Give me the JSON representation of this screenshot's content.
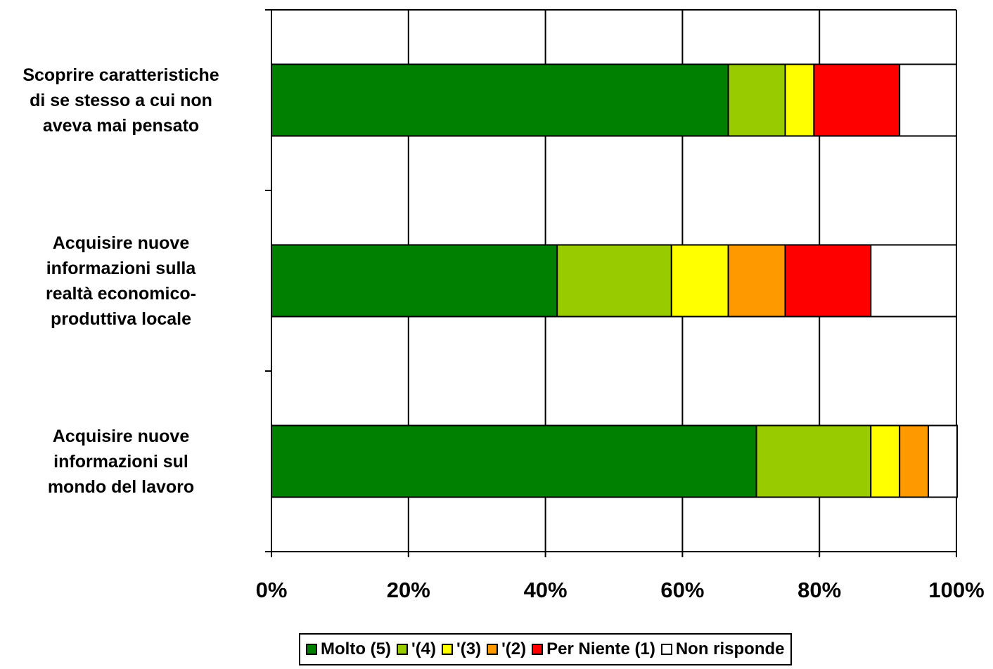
{
  "chart_data": {
    "type": "bar",
    "orientation": "horizontal",
    "stacked": "percent",
    "categories": [
      "Scoprire caratteristiche di se stesso a cui non aveva mai pensato",
      "Acquisire nuove informazioni sulla realtà economico-produttiva locale",
      "Acquisire nuove informazioni sul mondo del lavoro"
    ],
    "category_label_lines": [
      [
        "Scoprire caratteristiche",
        "di se stesso a cui non",
        "aveva mai pensato"
      ],
      [
        "Acquisire nuove",
        "informazioni sulla",
        "realtà economico-",
        "produttiva locale"
      ],
      [
        "Acquisire nuove",
        "informazioni sul",
        "mondo del lavoro"
      ]
    ],
    "series": [
      {
        "name": "Molto (5)",
        "color": "#008000",
        "values": [
          66.7,
          41.7,
          70.8
        ]
      },
      {
        "name": "'(4)",
        "color": "#99CC00",
        "values": [
          8.3,
          16.7,
          16.7
        ]
      },
      {
        "name": "'(3)",
        "color": "#FFFF00",
        "values": [
          4.2,
          8.3,
          4.2
        ]
      },
      {
        "name": "'(2)",
        "color": "#FF9900",
        "values": [
          0,
          8.3,
          4.2
        ]
      },
      {
        "name": "Per Niente (1)",
        "color": "#FF0000",
        "values": [
          12.5,
          12.5,
          0
        ]
      },
      {
        "name": "Non risponde",
        "color": "#FFFFFF",
        "values": [
          8.3,
          12.5,
          4.2
        ]
      }
    ],
    "xlim": [
      0,
      100
    ],
    "x_ticks": [
      "0%",
      "20%",
      "40%",
      "60%",
      "80%",
      "100%"
    ],
    "grid": true,
    "legend_position": "bottom"
  }
}
